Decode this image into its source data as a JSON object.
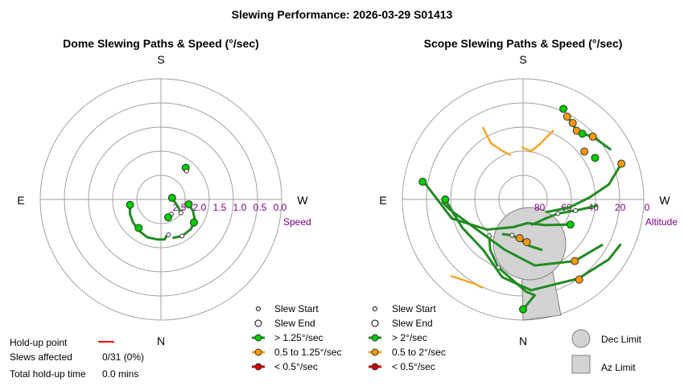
{
  "title": "Slewing Performance: 2026-03-29 S01413",
  "colors": {
    "fast": "#00cc00",
    "mid": "#ff9900",
    "slow": "#cc0000",
    "path_fast": "#228b22",
    "path_mid": "#f5a623",
    "holdup": "#ff0000",
    "limit_fill": "#d3d3d3",
    "limit_stroke": "#808080",
    "tick": "#800080",
    "grid": "#a0a0a0"
  },
  "dome": {
    "subtitle": "Dome Slewing Paths & Speed (°/sec)",
    "dirs": {
      "S": "S",
      "N": "N",
      "E": "E",
      "W": "W"
    },
    "ticks": [
      "2.5",
      "2.0",
      "1.5",
      "1.0",
      "0.5",
      "0.0"
    ],
    "axis_label": "Speed",
    "legend": {
      "start": "Slew Start",
      "end": "Slew End",
      "fast": "> 1.25°/sec",
      "mid": "0.5 to 1.25°/sec",
      "slow": "< 0.5°/sec"
    }
  },
  "scope": {
    "subtitle": "Scope Slewing Paths & Speed (°/sec)",
    "dirs": {
      "S": "S",
      "N": "N",
      "E": "E",
      "W": "W"
    },
    "ticks": [
      "80",
      "60",
      "40",
      "20",
      "0"
    ],
    "axis_label": "Altitude",
    "legend": {
      "start": "Slew Start",
      "end": "Slew End",
      "fast": "> 2°/sec",
      "mid": "0.5 to 2°/sec",
      "slow": "< 0.5°/sec"
    },
    "limits": {
      "dec": "Dec Limit",
      "az": "Az Limit"
    }
  },
  "holdup": {
    "point_label": "Hold-up point",
    "affected_label": "Slews affected",
    "affected_value": "0/31 (0%)",
    "total_label": "Total hold-up time",
    "total_value": "0.0 mins"
  },
  "chart_data": [
    {
      "type": "scatter",
      "title": "Dome Slewing Paths & Speed (°/sec)",
      "projection": "polar",
      "radial_axis": "Speed",
      "radial_ticks": [
        2.5,
        2.0,
        1.5,
        1.0,
        0.5,
        0.0
      ],
      "radial_range": [
        3.0,
        0.0
      ],
      "direction_labels": [
        "S",
        "W",
        "N",
        "E"
      ],
      "series": [
        {
          "path": [
            {
              "az": 170,
              "speed": 2.1
            },
            {
              "az": 175,
              "speed": 2.0
            },
            {
              "az": 185,
              "speed": 2.0
            },
            {
              "az": 200,
              "speed": 2.0
            },
            {
              "az": 215,
              "speed": 2.05
            },
            {
              "az": 230,
              "speed": 2.1
            },
            {
              "az": 245,
              "speed": 2.15
            },
            {
              "az": 262,
              "speed": 2.22
            }
          ],
          "markers": [
            {
              "az": 168,
              "speed": 2.1,
              "kind": "start"
            },
            {
              "az": 218,
              "speed": 2.1,
              "kind": "fast"
            },
            {
              "az": 260,
              "speed": 2.22,
              "kind": "fast"
            }
          ]
        },
        {
          "path": [
            {
              "az": 100,
              "speed": 2.3
            },
            {
              "az": 110,
              "speed": 2.15
            },
            {
              "az": 122,
              "speed": 2.0
            },
            {
              "az": 135,
              "speed": 1.95
            },
            {
              "az": 150,
              "speed": 1.95
            },
            {
              "az": 162,
              "speed": 2.0
            }
          ],
          "markers": [
            {
              "az": 100,
              "speed": 2.3,
              "kind": "fast"
            },
            {
              "az": 125,
              "speed": 2.0,
              "kind": "fast"
            },
            {
              "az": 150,
              "speed": 1.95,
              "kind": "start"
            }
          ]
        },
        {
          "path": [
            {
              "az": 145,
              "speed": 2.55
            },
            {
              "az": 150,
              "speed": 2.5
            },
            {
              "az": 158,
              "speed": 2.52
            }
          ],
          "markers": [
            {
              "az": 145,
              "speed": 2.55,
              "kind": "start"
            },
            {
              "az": 158,
              "speed": 2.52,
              "kind": "fast"
            }
          ]
        },
        {
          "path": [
            {
              "az": 38,
              "speed": 2.0
            },
            {
              "az": 42,
              "speed": 2.05
            }
          ],
          "markers": [
            {
              "az": 38,
              "speed": 2.0,
              "kind": "fast"
            },
            {
              "az": 42,
              "speed": 2.05,
              "kind": "start"
            }
          ]
        },
        {
          "path": [
            {
              "az": 80,
              "speed": 2.75
            },
            {
              "az": 100,
              "speed": 2.65
            },
            {
              "az": 115,
              "speed": 2.52
            },
            {
              "az": 125,
              "speed": 2.4
            }
          ],
          "markers": [
            {
              "az": 82,
              "speed": 2.72,
              "kind": "fast"
            },
            {
              "az": 124,
              "speed": 2.4,
              "kind": "start"
            }
          ]
        }
      ]
    },
    {
      "type": "scatter",
      "title": "Scope Slewing Paths & Speed (°/sec)",
      "projection": "polar",
      "radial_axis": "Altitude",
      "radial_ticks": [
        80,
        60,
        40,
        20,
        0
      ],
      "radial_range": [
        90,
        0
      ],
      "direction_labels": [
        "S",
        "W",
        "N",
        "E"
      ],
      "limits": [
        "Dec Limit",
        "Az Limit"
      ],
      "series": [
        {
          "path": [
            {
              "az": 180,
              "alt": 8
            },
            {
              "az": 173,
              "alt": 18
            },
            {
              "az": 178,
              "alt": 21
            },
            {
              "az": 200,
              "alt": 36
            },
            {
              "az": 213,
              "alt": 45
            },
            {
              "az": 223,
              "alt": 53
            }
          ],
          "markers": [
            {
              "az": 180,
              "alt": 8,
              "kind": "fast"
            },
            {
              "az": 200,
              "alt": 36,
              "kind": "start"
            },
            {
              "az": 223,
              "alt": 53,
              "kind": "start"
            }
          ]
        },
        {
          "path": [
            {
              "az": 115,
              "alt": 10
            },
            {
              "az": 125,
              "alt": 12
            },
            {
              "az": 145,
              "alt": 18
            },
            {
              "az": 175,
              "alt": 22
            },
            {
              "az": 195,
              "alt": 30
            },
            {
              "az": 218,
              "alt": 42
            },
            {
              "az": 245,
              "alt": 40
            },
            {
              "az": 270,
              "alt": 32
            }
          ],
          "markers": [
            {
              "az": 145,
              "alt": 17,
              "kind": "mid"
            },
            {
              "az": 270,
              "alt": 32,
              "kind": "fast"
            }
          ]
        },
        {
          "path": [
            {
              "az": 120,
              "alt": 22
            },
            {
              "az": 140,
              "alt": 30
            },
            {
              "az": 170,
              "alt": 40
            },
            {
              "az": 200,
              "alt": 50
            },
            {
              "az": 240,
              "alt": 48
            },
            {
              "az": 262,
              "alt": 35
            },
            {
              "az": 268,
              "alt": 30
            }
          ],
          "markers": [
            {
              "az": 140,
              "alt": 30,
              "kind": "mid"
            }
          ]
        },
        {
          "path": [
            {
              "az": 160,
              "alt": 50
            },
            {
              "az": 172,
              "alt": 55
            },
            {
              "az": 185,
              "alt": 60
            },
            {
              "az": 197,
              "alt": 62
            },
            {
              "az": 210,
              "alt": 60
            }
          ],
          "markers": [
            {
              "az": 175,
              "alt": 58,
              "kind": "mid"
            },
            {
              "az": 185,
              "alt": 61,
              "kind": "mid"
            },
            {
              "az": 197,
              "alt": 62,
              "kind": "start"
            }
          ]
        },
        {
          "path": [
            {
              "az": 95,
              "alt": 35
            },
            {
              "az": 102,
              "alt": 50
            },
            {
              "az": 112,
              "alt": 62
            },
            {
              "az": 130,
              "alt": 68
            },
            {
              "az": 160,
              "alt": 70
            }
          ],
          "markers": [
            {
              "az": 102,
              "alt": 50,
              "kind": "start"
            },
            {
              "az": 112,
              "alt": 62,
              "kind": "start"
            }
          ]
        },
        {
          "path": [
            {
              "az": 280,
              "alt": 15
            },
            {
              "az": 255,
              "alt": 35
            },
            {
              "az": 230,
              "alt": 55
            },
            {
              "az": 200,
              "alt": 68
            },
            {
              "az": 170,
              "alt": 72
            },
            {
              "az": 140,
              "alt": 65
            },
            {
              "az": 118,
              "alt": 50
            }
          ],
          "markers": [
            {
              "az": 280,
              "alt": 14,
              "kind": "fast"
            },
            {
              "az": 118,
              "alt": 50,
              "kind": "fast"
            }
          ]
        },
        {
          "path": [
            {
              "az": 60,
              "alt": 15
            },
            {
              "az": 48,
              "alt": 20
            },
            {
              "az": 42,
              "alt": 24
            },
            {
              "az": 38,
              "alt": 25
            },
            {
              "az": 32,
              "alt": 22
            },
            {
              "az": 28,
              "alt": 20
            }
          ],
          "markers": [
            {
              "az": 48,
              "alt": 20,
              "kind": "mid"
            },
            {
              "az": 38,
              "alt": 25,
              "kind": "mid"
            },
            {
              "az": 33,
              "alt": 22,
              "kind": "mid"
            },
            {
              "az": 28,
              "alt": 20,
              "kind": "mid"
            },
            {
              "az": 42,
              "alt": 24,
              "kind": "fast"
            },
            {
              "az": 24,
              "alt": 16,
              "kind": "fast"
            }
          ]
        },
        {
          "path": [
            {
              "az": 70,
              "alt": 12
            },
            {
              "az": 80,
              "alt": 25
            },
            {
              "az": 88,
              "alt": 40
            },
            {
              "az": 100,
              "alt": 55
            },
            {
              "az": 118,
              "alt": 70
            }
          ],
          "markers": [
            {
              "az": 70,
              "alt": 12,
              "kind": "mid"
            },
            {
              "az": 60,
              "alt": 28,
              "kind": "fast"
            },
            {
              "az": 52,
              "alt": 32,
              "kind": "mid"
            }
          ]
        }
      ]
    }
  ]
}
